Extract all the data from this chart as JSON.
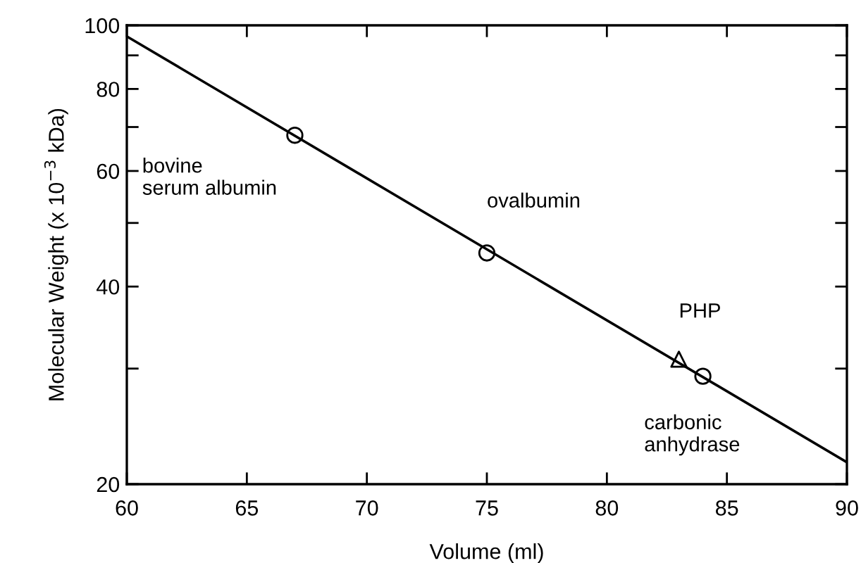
{
  "chart_data": {
    "type": "scatter",
    "xlabel": "Volume (ml)",
    "ylabel": "Molecular Weight (x 10$^{−3}$ kDa)",
    "log": "y",
    "xlim": [
      60,
      90
    ],
    "xticks": [
      60,
      65,
      70,
      75,
      80,
      85,
      90
    ],
    "ylim": [
      20,
      100
    ],
    "yticks": [
      20,
      {
        "value": 30,
        "label": null
      },
      40,
      {
        "value": 50,
        "label": null
      },
      60,
      {
        "value": 70,
        "label": null
      },
      80,
      {
        "value": 90,
        "label": null
      },
      100
    ],
    "grid": false,
    "legend": false,
    "series": [
      {
        "type": "line",
        "color": "#000000",
        "x": [
          60,
          90
        ],
        "values": [
          96.2,
          21.6
        ],
        "marker": "none",
        "line_style": "solid"
      },
      {
        "color": "#000000",
        "x": [
          67,
          75,
          84
        ],
        "values": [
          68,
          45,
          29.2
        ],
        "marker": "circle"
      },
      {
        "color": "#000000",
        "x": [
          83
        ],
        "values": [
          31
        ],
        "marker": "triangle"
      }
    ],
    "annotations": [
      {
        "text": "bovine\nserum albumin",
        "x": 67,
        "y": 68
      },
      {
        "text": "ovalbumin",
        "x": 75,
        "y": 45
      },
      {
        "text": "PHP",
        "x": 83,
        "y": 31
      },
      {
        "text": "carbonic\nanhydrase",
        "x": 84,
        "y": 29.2
      }
    ]
  }
}
